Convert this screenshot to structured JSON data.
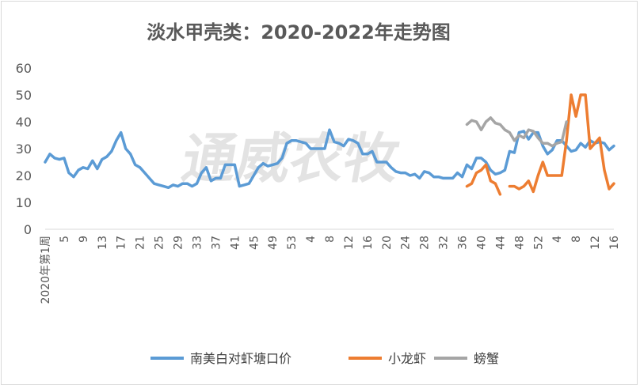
{
  "chart_data": {
    "type": "line",
    "title": "淡水甲壳类：2020-2022年走势图",
    "watermark": "通威农牧",
    "ylim": [
      0,
      60
    ],
    "yticks": [
      0,
      10,
      20,
      30,
      40,
      50,
      60
    ],
    "grid": false,
    "legend_position": "bottom",
    "x_tick_labels": [
      {
        "index": 0,
        "label": "2020年第1周"
      },
      {
        "index": 4,
        "label": "5"
      },
      {
        "index": 8,
        "label": "9"
      },
      {
        "index": 12,
        "label": "13"
      },
      {
        "index": 16,
        "label": "17"
      },
      {
        "index": 20,
        "label": "21"
      },
      {
        "index": 24,
        "label": "25"
      },
      {
        "index": 28,
        "label": "29"
      },
      {
        "index": 32,
        "label": "33"
      },
      {
        "index": 36,
        "label": "37"
      },
      {
        "index": 40,
        "label": "41"
      },
      {
        "index": 44,
        "label": "45"
      },
      {
        "index": 48,
        "label": "49"
      },
      {
        "index": 52,
        "label": "53"
      },
      {
        "index": 56,
        "label": "4"
      },
      {
        "index": 60,
        "label": "8"
      },
      {
        "index": 64,
        "label": "12"
      },
      {
        "index": 68,
        "label": "16"
      },
      {
        "index": 72,
        "label": "20"
      },
      {
        "index": 76,
        "label": "24"
      },
      {
        "index": 80,
        "label": "28"
      },
      {
        "index": 84,
        "label": "32"
      },
      {
        "index": 88,
        "label": "36"
      },
      {
        "index": 92,
        "label": "40"
      },
      {
        "index": 96,
        "label": "44"
      },
      {
        "index": 100,
        "label": "48"
      },
      {
        "index": 104,
        "label": "52"
      },
      {
        "index": 108,
        "label": "4"
      },
      {
        "index": 112,
        "label": "8"
      },
      {
        "index": 116,
        "label": "12"
      },
      {
        "index": 120,
        "label": "16"
      }
    ],
    "series": [
      {
        "name": "南美白对虾塘口价",
        "color": "#5b9bd5",
        "points": [
          [
            0,
            25
          ],
          [
            1,
            28
          ],
          [
            2,
            26.5
          ],
          [
            3,
            26
          ],
          [
            4,
            26.5
          ],
          [
            5,
            21
          ],
          [
            6,
            19.5
          ],
          [
            7,
            22
          ],
          [
            8,
            23
          ],
          [
            9,
            22.5
          ],
          [
            10,
            25.5
          ],
          [
            11,
            22.5
          ],
          [
            12,
            26
          ],
          [
            13,
            27
          ],
          [
            14,
            29
          ],
          [
            15,
            33
          ],
          [
            16,
            36
          ],
          [
            17,
            30
          ],
          [
            18,
            28
          ],
          [
            19,
            24
          ],
          [
            20,
            23
          ],
          [
            21,
            21
          ],
          [
            22,
            19
          ],
          [
            23,
            17
          ],
          [
            24,
            16.5
          ],
          [
            25,
            16
          ],
          [
            26,
            15.5
          ],
          [
            27,
            16.5
          ],
          [
            28,
            16
          ],
          [
            29,
            17
          ],
          [
            30,
            17
          ],
          [
            31,
            16
          ],
          [
            32,
            17
          ],
          [
            33,
            21
          ],
          [
            34,
            23
          ],
          [
            35,
            18
          ],
          [
            36,
            19
          ],
          [
            37,
            19
          ],
          [
            38,
            24
          ],
          [
            39,
            24
          ],
          [
            40,
            24
          ],
          [
            41,
            16
          ],
          [
            42,
            16.5
          ],
          [
            43,
            17
          ],
          [
            44,
            20
          ],
          [
            45,
            23
          ],
          [
            46,
            24.5
          ],
          [
            47,
            23.5
          ],
          [
            48,
            24
          ],
          [
            49,
            24.5
          ],
          [
            50,
            26.5
          ],
          [
            51,
            32
          ],
          [
            52,
            33
          ],
          [
            53,
            33
          ],
          [
            54,
            32.5
          ],
          [
            55,
            32
          ],
          [
            56,
            30
          ],
          [
            57,
            30
          ],
          [
            58,
            30
          ],
          [
            59,
            30
          ],
          [
            60,
            37
          ],
          [
            61,
            32.5
          ],
          [
            62,
            32
          ],
          [
            63,
            31
          ],
          [
            64,
            33.5
          ],
          [
            65,
            33
          ],
          [
            66,
            32
          ],
          [
            67,
            28
          ],
          [
            68,
            28
          ],
          [
            69,
            29
          ],
          [
            70,
            25
          ],
          [
            71,
            25
          ],
          [
            72,
            25
          ],
          [
            73,
            23
          ],
          [
            74,
            21.5
          ],
          [
            75,
            21
          ],
          [
            76,
            21
          ],
          [
            77,
            20
          ],
          [
            78,
            20.5
          ],
          [
            79,
            19
          ],
          [
            80,
            21.5
          ],
          [
            81,
            21
          ],
          [
            82,
            19.5
          ],
          [
            83,
            19.5
          ],
          [
            84,
            19
          ],
          [
            85,
            19
          ],
          [
            86,
            19
          ],
          [
            87,
            21
          ],
          [
            88,
            19.5
          ],
          [
            89,
            24
          ],
          [
            90,
            22.5
          ],
          [
            91,
            26.5
          ],
          [
            92,
            26.5
          ],
          [
            93,
            25
          ],
          [
            94,
            22
          ],
          [
            95,
            20.5
          ],
          [
            96,
            21
          ],
          [
            97,
            22
          ],
          [
            98,
            29
          ],
          [
            99,
            28.5
          ],
          [
            100,
            36
          ],
          [
            101,
            36.5
          ],
          [
            102,
            33.5
          ],
          [
            103,
            36
          ],
          [
            104,
            36
          ],
          [
            105,
            31
          ],
          [
            106,
            28
          ],
          [
            107,
            29.5
          ],
          [
            108,
            33
          ],
          [
            109,
            33
          ],
          [
            110,
            31
          ],
          [
            111,
            29
          ],
          [
            112,
            29.5
          ],
          [
            113,
            32
          ],
          [
            114,
            30.5
          ],
          [
            115,
            33
          ],
          [
            116,
            32
          ],
          [
            117,
            32.5
          ],
          [
            118,
            32
          ],
          [
            119,
            29.5
          ],
          [
            120,
            31
          ]
        ]
      },
      {
        "name": "小龙虾",
        "color": "#ed7d31",
        "points": [
          [
            89,
            16
          ],
          [
            90,
            17
          ],
          [
            91,
            21
          ],
          [
            92,
            22
          ],
          [
            93,
            24
          ],
          [
            94,
            18
          ],
          [
            95,
            17
          ],
          [
            96,
            13
          ],
          null,
          [
            98,
            16
          ],
          [
            99,
            16
          ],
          [
            100,
            15
          ],
          [
            101,
            16
          ],
          [
            102,
            18
          ],
          [
            103,
            14
          ],
          [
            104,
            20
          ],
          [
            105,
            25
          ],
          [
            106,
            20
          ],
          [
            107,
            20
          ],
          [
            108,
            20
          ],
          [
            109,
            20
          ],
          [
            110,
            33
          ],
          [
            111,
            50
          ],
          [
            112,
            42
          ],
          [
            113,
            50
          ],
          [
            114,
            50
          ],
          [
            115,
            30
          ],
          [
            116,
            32
          ],
          [
            117,
            34
          ],
          [
            118,
            22
          ],
          [
            119,
            15
          ],
          [
            120,
            17
          ]
        ]
      },
      {
        "name": "螃蟹",
        "color": "#a5a5a5",
        "points": [
          [
            89,
            39
          ],
          [
            90,
            40.5
          ],
          [
            91,
            40
          ],
          [
            92,
            37
          ],
          [
            93,
            40
          ],
          [
            94,
            41.5
          ],
          [
            95,
            39.5
          ],
          [
            96,
            39
          ],
          [
            97,
            37
          ],
          [
            98,
            36
          ],
          [
            99,
            33
          ],
          [
            100,
            35
          ],
          [
            101,
            34
          ],
          [
            102,
            37
          ],
          [
            103,
            36.5
          ],
          [
            104,
            34
          ],
          [
            105,
            32
          ],
          [
            106,
            32
          ],
          [
            107,
            31
          ],
          [
            108,
            32
          ],
          [
            109,
            32.5
          ],
          [
            110,
            40
          ]
        ]
      }
    ]
  }
}
